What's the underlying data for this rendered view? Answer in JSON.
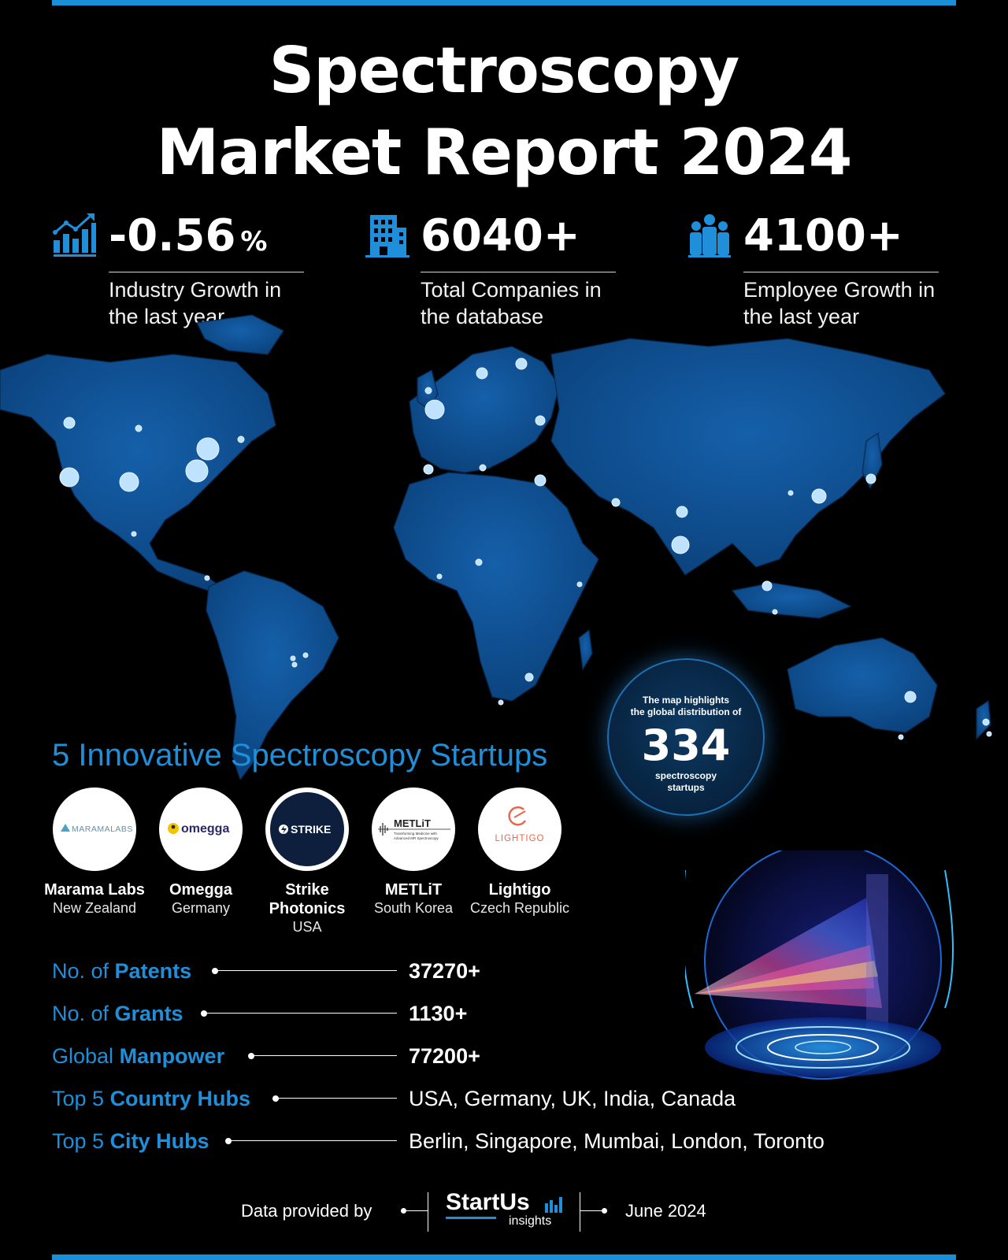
{
  "header": {
    "title_line1": "Spectroscopy",
    "title_line2": "Market Report 2024"
  },
  "stats": [
    {
      "icon": "growth-chart-icon",
      "value": "-0.56",
      "unit": "%",
      "desc_line1": "Industry Growth in",
      "desc_line2": "the last year"
    },
    {
      "icon": "building-icon",
      "value": "6040+",
      "unit": "",
      "desc_line1": "Total Companies in",
      "desc_line2": "the database"
    },
    {
      "icon": "people-icon",
      "value": "4100+",
      "unit": "",
      "desc_line1": "Employee Growth in",
      "desc_line2": "the last year"
    }
  ],
  "map_badge": {
    "line1": "The map highlights",
    "line2": "the global distribution of",
    "count": "334",
    "line3": "spectroscopy",
    "line4": "startups"
  },
  "startups_title": "5 Innovative Spectroscopy Startups",
  "startups": [
    {
      "name": "Marama Labs",
      "country": "New Zealand",
      "logo_text": "MARAMALABS"
    },
    {
      "name": "Omegga",
      "country": "Germany",
      "logo_text": "omegga"
    },
    {
      "name_line1": "Strike",
      "name_line2": "Photonics",
      "country": "USA",
      "logo_text": "STRIKE"
    },
    {
      "name": "METLiT",
      "country": "South Korea",
      "logo_text": "METLiT",
      "logo_sub1": "Transforming Medicine with",
      "logo_sub2": "Advanced MR Spectroscopy"
    },
    {
      "name": "Lightigo",
      "country": "Czech Republic",
      "logo_text": "LIGHTIGO"
    }
  ],
  "metrics": [
    {
      "label_prefix": "No. of ",
      "label_bold": "Patents",
      "value": "37270+"
    },
    {
      "label_prefix": "No. of ",
      "label_bold": "Grants",
      "value": "1130+"
    },
    {
      "label_prefix": "Global ",
      "label_bold": "Manpower",
      "value": "77200+"
    },
    {
      "label_prefix": "Top 5 ",
      "label_bold": "Country Hubs",
      "value": "USA, Germany, UK, India, Canada"
    },
    {
      "label_prefix": "Top 5 ",
      "label_bold": "City Hubs",
      "value": "Berlin, Singapore, Mumbai, London, Toronto"
    }
  ],
  "footer": {
    "provided_by": "Data provided by",
    "brand": "StartUs",
    "brand_sub": "insights",
    "date": "June 2024"
  },
  "colors": {
    "accent": "#1e8fd8",
    "map_fill": "#0d4a8a",
    "background": "#000000"
  }
}
